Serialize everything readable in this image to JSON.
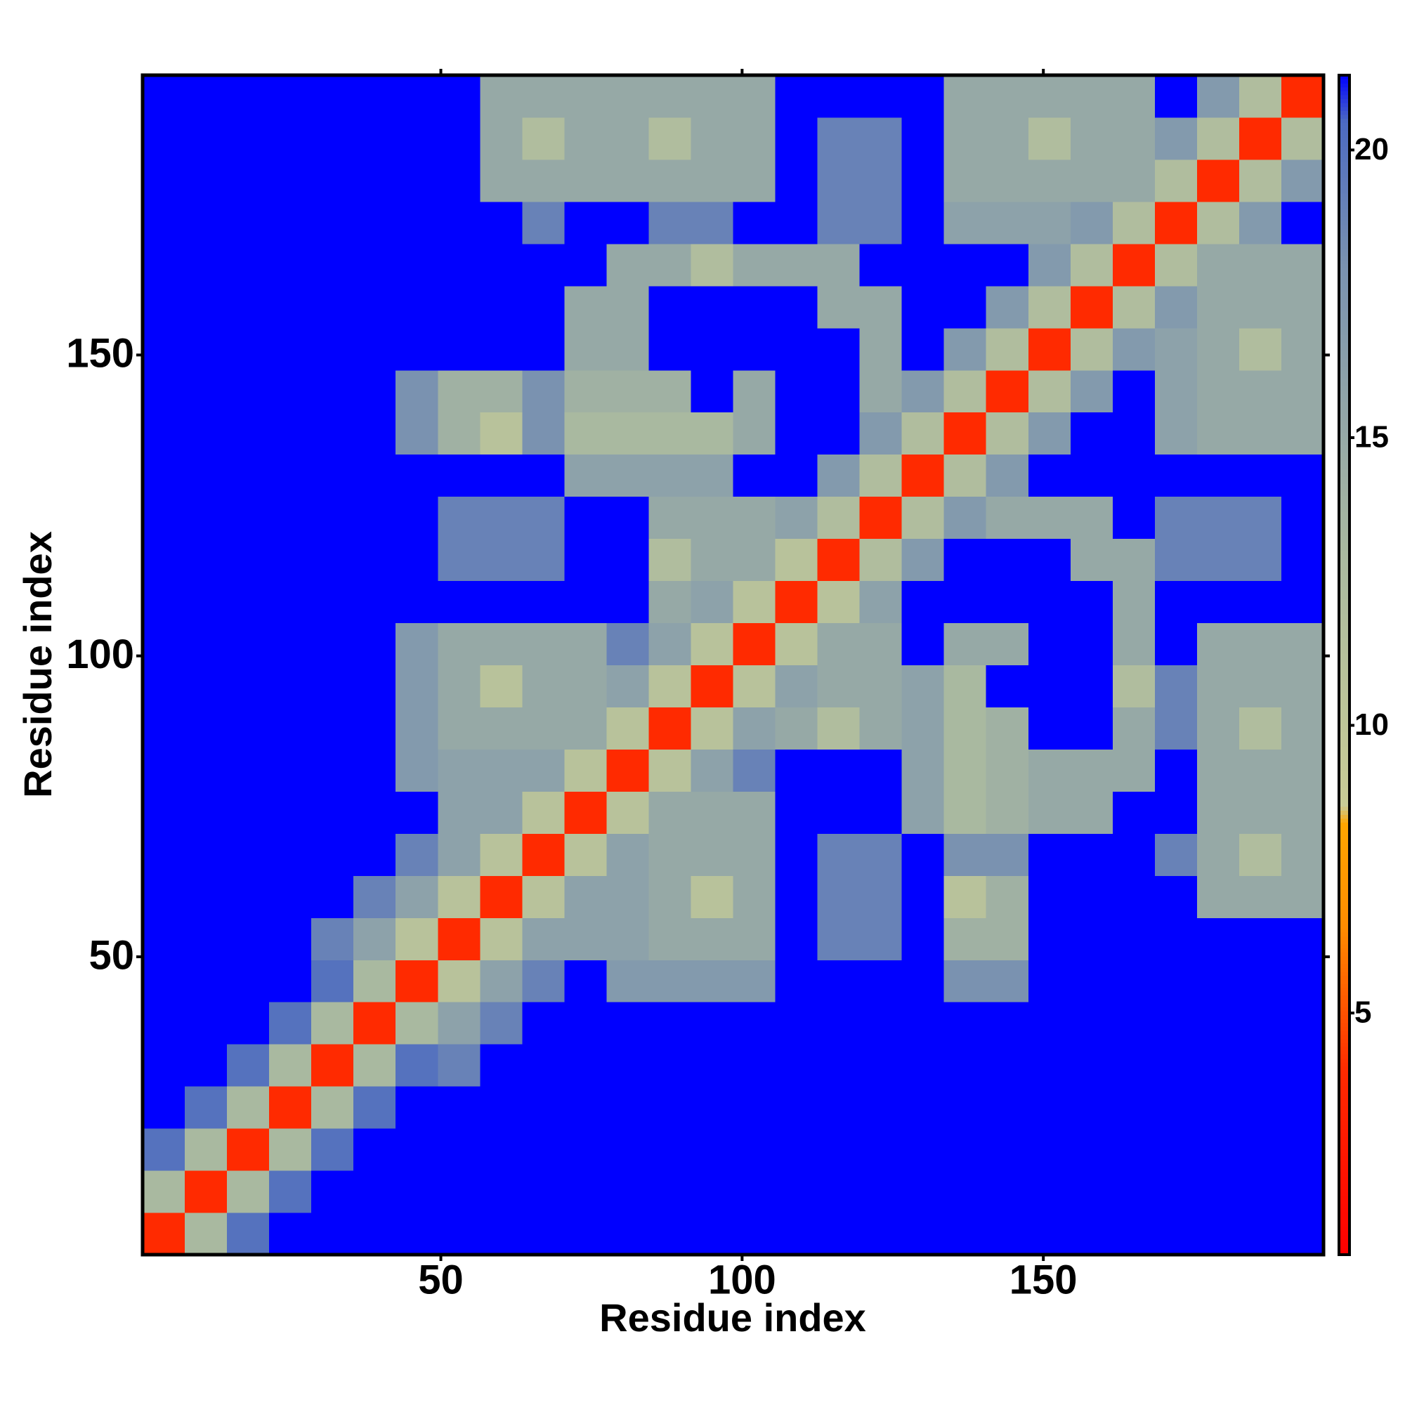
{
  "chart_data": {
    "type": "heatmap",
    "xlabel": "Residue index",
    "ylabel": "Residue index",
    "xlim": [
      0.5,
      196.5
    ],
    "ylim": [
      0.5,
      196.5
    ],
    "xticks": [
      50,
      100,
      150
    ],
    "yticks": [
      50,
      100,
      150
    ],
    "zlim": [
      0.8,
      21.3
    ],
    "colorbar_ticks": [
      5,
      10,
      15,
      20
    ],
    "colorscale": [
      [
        0.8,
        "#ff0000"
      ],
      [
        4,
        "#ff2a00"
      ],
      [
        6.5,
        "#ff8c00"
      ],
      [
        8.3,
        "#ffa500"
      ],
      [
        8.6,
        "#c9cc96"
      ],
      [
        13,
        "#a9b9a0"
      ],
      [
        18,
        "#7a92b0"
      ],
      [
        20.5,
        "#4c6ac2"
      ],
      [
        21.3,
        "#0000ff"
      ]
    ],
    "z": [
      [
        4,
        13,
        20,
        22,
        22,
        22,
        22,
        22,
        22,
        22,
        22,
        22,
        22,
        22,
        22,
        22,
        22,
        22,
        22,
        22,
        22,
        22,
        22,
        22,
        22,
        22,
        22,
        22
      ],
      [
        13,
        4,
        13,
        20,
        22,
        22,
        22,
        22,
        22,
        22,
        22,
        22,
        22,
        22,
        22,
        22,
        22,
        22,
        22,
        22,
        22,
        22,
        22,
        22,
        22,
        22,
        22,
        22
      ],
      [
        20,
        13,
        4,
        13,
        20,
        22,
        22,
        22,
        22,
        22,
        22,
        22,
        22,
        22,
        22,
        22,
        22,
        22,
        22,
        22,
        22,
        22,
        22,
        22,
        22,
        22,
        22,
        22
      ],
      [
        22,
        20,
        13,
        4,
        13,
        20,
        22,
        22,
        22,
        22,
        22,
        22,
        22,
        22,
        22,
        22,
        22,
        22,
        22,
        22,
        22,
        22,
        22,
        22,
        22,
        22,
        22,
        22
      ],
      [
        22,
        22,
        20,
        13,
        4,
        13,
        20,
        19,
        22,
        22,
        22,
        22,
        22,
        22,
        22,
        22,
        22,
        22,
        22,
        22,
        22,
        22,
        22,
        22,
        22,
        22,
        22,
        22
      ],
      [
        22,
        22,
        22,
        20,
        13,
        4,
        13,
        16,
        19,
        22,
        22,
        22,
        22,
        22,
        22,
        22,
        22,
        22,
        22,
        22,
        22,
        22,
        22,
        22,
        22,
        22,
        22,
        22
      ],
      [
        22,
        22,
        22,
        22,
        20,
        13,
        4,
        11,
        16,
        19,
        22,
        17,
        17,
        17,
        17,
        22,
        22,
        22,
        22,
        18,
        18,
        22,
        22,
        22,
        22,
        22,
        22,
        22
      ],
      [
        22,
        22,
        22,
        22,
        19,
        16,
        11,
        4,
        11,
        16,
        16,
        16,
        15,
        15,
        15,
        22,
        19,
        19,
        22,
        14,
        14,
        22,
        22,
        22,
        22,
        22,
        22,
        22
      ],
      [
        22,
        22,
        22,
        22,
        22,
        19,
        16,
        11,
        4,
        11,
        16,
        16,
        15,
        11,
        15,
        22,
        19,
        19,
        22,
        11,
        14,
        22,
        22,
        22,
        22,
        15,
        15,
        15
      ],
      [
        22,
        22,
        22,
        22,
        22,
        22,
        19,
        16,
        11,
        4,
        11,
        16,
        15,
        15,
        15,
        22,
        19,
        19,
        22,
        18,
        18,
        22,
        22,
        22,
        19,
        15,
        12,
        15
      ],
      [
        22,
        22,
        22,
        22,
        22,
        22,
        22,
        16,
        16,
        11,
        4,
        11,
        15,
        15,
        15,
        22,
        22,
        22,
        16,
        13,
        14,
        15,
        15,
        22,
        22,
        15,
        15,
        15
      ],
      [
        22,
        22,
        22,
        22,
        22,
        22,
        17,
        16,
        16,
        16,
        11,
        4,
        11,
        16,
        19,
        22,
        22,
        22,
        16,
        13,
        14,
        15,
        15,
        15,
        22,
        15,
        15,
        15
      ],
      [
        22,
        22,
        22,
        22,
        22,
        22,
        17,
        15,
        15,
        15,
        15,
        11,
        4,
        11,
        16,
        15,
        12,
        15,
        16,
        13,
        14,
        22,
        22,
        15,
        19,
        15,
        12,
        15
      ],
      [
        22,
        22,
        22,
        22,
        22,
        22,
        17,
        15,
        11,
        15,
        15,
        16,
        11,
        4,
        11,
        16,
        15,
        15,
        16,
        13,
        22,
        22,
        22,
        12,
        19,
        15,
        15,
        15
      ],
      [
        22,
        22,
        22,
        22,
        22,
        22,
        17,
        15,
        15,
        15,
        15,
        19,
        16,
        11,
        4,
        11,
        15,
        15,
        22,
        15,
        15,
        22,
        22,
        15,
        22,
        15,
        15,
        15
      ],
      [
        22,
        22,
        22,
        22,
        22,
        22,
        22,
        22,
        22,
        22,
        22,
        22,
        15,
        16,
        11,
        4,
        11,
        16,
        22,
        22,
        22,
        22,
        22,
        15,
        22,
        22,
        22,
        22
      ],
      [
        22,
        22,
        22,
        22,
        22,
        22,
        22,
        19,
        19,
        19,
        22,
        22,
        12,
        15,
        15,
        11,
        4,
        12,
        17,
        22,
        22,
        22,
        15,
        15,
        19,
        19,
        19,
        22
      ],
      [
        22,
        22,
        22,
        22,
        22,
        22,
        22,
        19,
        19,
        19,
        22,
        22,
        15,
        15,
        15,
        16,
        12,
        4,
        12,
        17,
        15,
        15,
        15,
        22,
        19,
        19,
        19,
        22
      ],
      [
        22,
        22,
        22,
        22,
        22,
        22,
        22,
        22,
        22,
        22,
        16,
        16,
        16,
        16,
        22,
        22,
        17,
        12,
        4,
        12,
        17,
        22,
        22,
        22,
        22,
        22,
        22,
        22
      ],
      [
        22,
        22,
        22,
        22,
        22,
        22,
        18,
        14,
        11,
        18,
        13,
        13,
        13,
        13,
        15,
        22,
        22,
        17,
        12,
        4,
        12,
        17,
        22,
        22,
        16,
        15,
        15,
        15
      ],
      [
        22,
        22,
        22,
        22,
        22,
        22,
        18,
        14,
        14,
        18,
        14,
        14,
        14,
        22,
        15,
        22,
        22,
        15,
        17,
        12,
        4,
        12,
        17,
        22,
        16,
        15,
        15,
        15
      ],
      [
        22,
        22,
        22,
        22,
        22,
        22,
        22,
        22,
        22,
        22,
        15,
        15,
        22,
        22,
        22,
        22,
        22,
        15,
        22,
        17,
        12,
        4,
        12,
        17,
        16,
        15,
        12,
        15
      ],
      [
        22,
        22,
        22,
        22,
        22,
        22,
        22,
        22,
        22,
        22,
        15,
        15,
        22,
        22,
        22,
        22,
        15,
        15,
        22,
        22,
        17,
        12,
        4,
        12,
        17,
        15,
        15,
        15
      ],
      [
        22,
        22,
        22,
        22,
        22,
        22,
        22,
        22,
        22,
        22,
        22,
        15,
        15,
        12,
        15,
        15,
        15,
        22,
        22,
        22,
        22,
        17,
        12,
        4,
        12,
        15,
        15,
        15
      ],
      [
        22,
        22,
        22,
        22,
        22,
        22,
        22,
        22,
        22,
        19,
        22,
        22,
        19,
        19,
        22,
        22,
        19,
        19,
        22,
        16,
        16,
        16,
        17,
        12,
        4,
        12,
        17,
        22
      ],
      [
        22,
        22,
        22,
        22,
        22,
        22,
        22,
        22,
        15,
        15,
        15,
        15,
        15,
        15,
        15,
        22,
        19,
        19,
        22,
        15,
        15,
        15,
        15,
        15,
        12,
        4,
        12,
        17
      ],
      [
        22,
        22,
        22,
        22,
        22,
        22,
        22,
        22,
        15,
        12,
        15,
        15,
        12,
        15,
        15,
        22,
        19,
        19,
        22,
        15,
        15,
        12,
        15,
        15,
        17,
        12,
        4,
        12
      ],
      [
        22,
        22,
        22,
        22,
        22,
        22,
        22,
        22,
        15,
        15,
        15,
        15,
        15,
        15,
        15,
        22,
        22,
        22,
        22,
        15,
        15,
        15,
        15,
        15,
        22,
        17,
        12,
        4
      ]
    ]
  }
}
